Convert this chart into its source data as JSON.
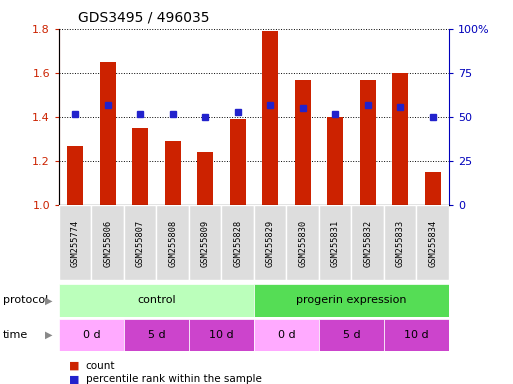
{
  "title": "GDS3495 / 496035",
  "samples": [
    "GSM255774",
    "GSM255806",
    "GSM255807",
    "GSM255808",
    "GSM255809",
    "GSM255828",
    "GSM255829",
    "GSM255830",
    "GSM255831",
    "GSM255832",
    "GSM255833",
    "GSM255834"
  ],
  "red_values": [
    1.27,
    1.65,
    1.35,
    1.29,
    1.24,
    1.39,
    1.79,
    1.57,
    1.4,
    1.57,
    1.6,
    1.15
  ],
  "blue_values": [
    52,
    57,
    52,
    52,
    50,
    53,
    57,
    55,
    52,
    57,
    56,
    50
  ],
  "ylim_left": [
    1.0,
    1.8
  ],
  "ylim_right": [
    0,
    100
  ],
  "yticks_left": [
    1.0,
    1.2,
    1.4,
    1.6,
    1.8
  ],
  "yticks_right": [
    0,
    25,
    50,
    75,
    100
  ],
  "ytick_labels_right": [
    "0",
    "25",
    "50",
    "75",
    "100%"
  ],
  "bar_color": "#cc2200",
  "dot_color": "#2222cc",
  "protocol_control_color": "#bbffbb",
  "protocol_progerin_color": "#55dd55",
  "time_0d_color": "#ffaaff",
  "time_5d_color": "#cc44cc",
  "time_10d_color": "#cc44cc",
  "protocol_label": "protocol",
  "time_label": "time",
  "time_groups": [
    {
      "label": "0 d",
      "start": 0,
      "end": 2,
      "color": "#ffaaff"
    },
    {
      "label": "5 d",
      "start": 2,
      "end": 4,
      "color": "#cc44cc"
    },
    {
      "label": "10 d",
      "start": 4,
      "end": 6,
      "color": "#cc44cc"
    },
    {
      "label": "0 d",
      "start": 6,
      "end": 8,
      "color": "#ffaaff"
    },
    {
      "label": "5 d",
      "start": 8,
      "end": 10,
      "color": "#cc44cc"
    },
    {
      "label": "10 d",
      "start": 10,
      "end": 12,
      "color": "#cc44cc"
    }
  ],
  "legend_count_color": "#cc2200",
  "legend_percentile_color": "#2222cc",
  "bar_width": 0.5,
  "bg_color": "#ffffff",
  "axis_tick_color_left": "#cc2200",
  "axis_tick_color_right": "#0000bb",
  "sample_box_color": "#dddddd",
  "sample_box_edge": "#aaaaaa"
}
